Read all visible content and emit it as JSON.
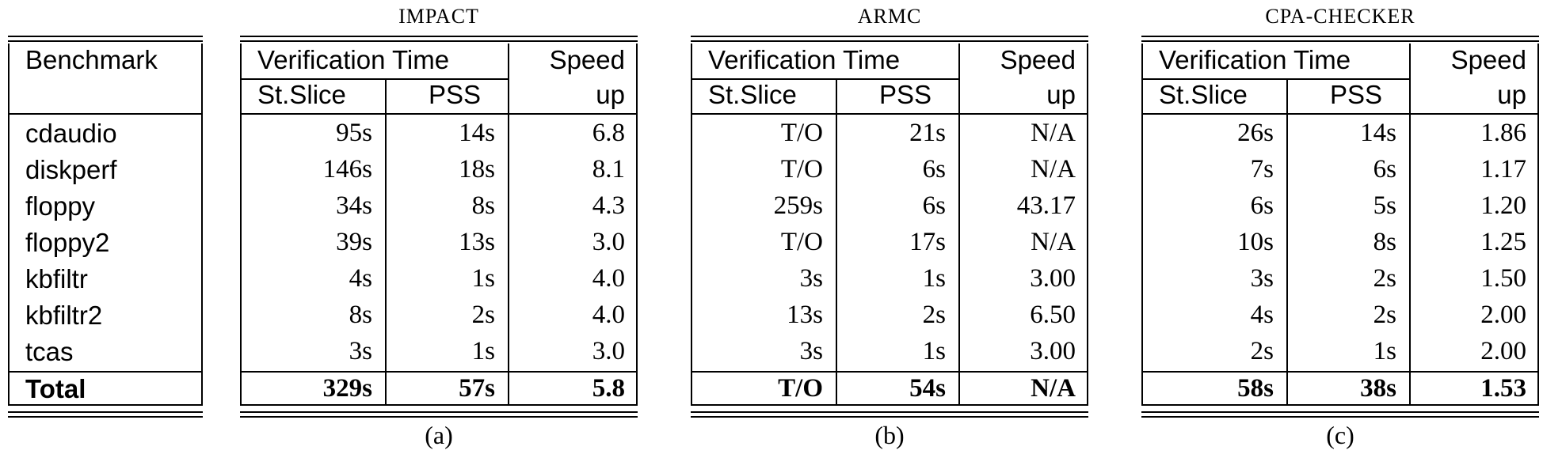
{
  "benchmark_header": "Benchmark",
  "benchmarks": [
    "cdaudio",
    "diskperf",
    "floppy",
    "floppy2",
    "kbfiltr",
    "kbfiltr2",
    "tcas"
  ],
  "total_label": "Total",
  "column_headers": {
    "verification_time": "Verification Time",
    "st_slice": "St.Slice",
    "pss": "PSS",
    "speed": "Speed",
    "up": "up"
  },
  "tables": [
    {
      "tool": "IMPACT",
      "caption": "(a)",
      "rows": [
        [
          "95s",
          "14s",
          "6.8"
        ],
        [
          "146s",
          "18s",
          "8.1"
        ],
        [
          "34s",
          "8s",
          "4.3"
        ],
        [
          "39s",
          "13s",
          "3.0"
        ],
        [
          "4s",
          "1s",
          "4.0"
        ],
        [
          "8s",
          "2s",
          "4.0"
        ],
        [
          "3s",
          "1s",
          "3.0"
        ]
      ],
      "total": [
        "329s",
        "57s",
        "5.8"
      ]
    },
    {
      "tool": "ARMC",
      "caption": "(b)",
      "rows": [
        [
          "T/O",
          "21s",
          "N/A"
        ],
        [
          "T/O",
          "6s",
          "N/A"
        ],
        [
          "259s",
          "6s",
          "43.17"
        ],
        [
          "T/O",
          "17s",
          "N/A"
        ],
        [
          "3s",
          "1s",
          "3.00"
        ],
        [
          "13s",
          "2s",
          "6.50"
        ],
        [
          "3s",
          "1s",
          "3.00"
        ]
      ],
      "total": [
        "T/O",
        "54s",
        "N/A"
      ]
    },
    {
      "tool": "CPA-CHECKER",
      "caption": "(c)",
      "rows": [
        [
          "26s",
          "14s",
          "1.86"
        ],
        [
          "7s",
          "6s",
          "1.17"
        ],
        [
          "6s",
          "5s",
          "1.20"
        ],
        [
          "10s",
          "8s",
          "1.25"
        ],
        [
          "3s",
          "2s",
          "1.50"
        ],
        [
          "4s",
          "2s",
          "2.00"
        ],
        [
          "2s",
          "1s",
          "2.00"
        ]
      ],
      "total": [
        "58s",
        "38s",
        "1.53"
      ]
    }
  ]
}
